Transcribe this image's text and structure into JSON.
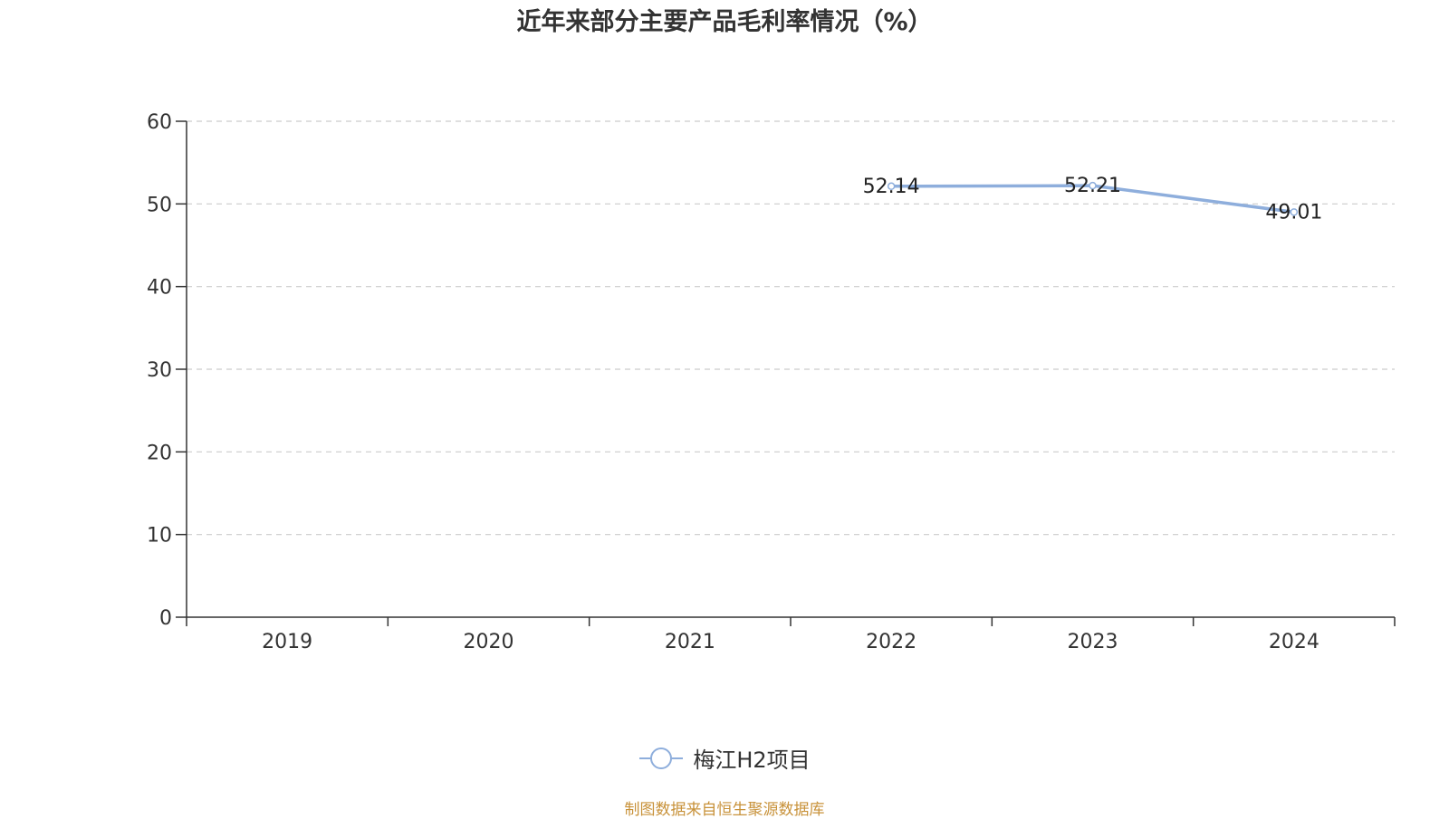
{
  "chart_data": {
    "type": "line",
    "title": "近年来部分主要产品毛利率情况（%）",
    "categories": [
      "2019",
      "2020",
      "2021",
      "2022",
      "2023",
      "2024"
    ],
    "series": [
      {
        "name": "梅江H2项目",
        "values": [
          null,
          null,
          null,
          52.14,
          52.21,
          49.01
        ],
        "labels": [
          "",
          "",
          "",
          "52.14",
          "52.21",
          "49.01"
        ],
        "color": "#8eaedc"
      }
    ],
    "ylim": [
      0,
      60
    ],
    "yticks": [
      "0",
      "10",
      "20",
      "30",
      "40",
      "50",
      "60"
    ],
    "grid": "dashed horizontal",
    "legend_position": "bottom-center"
  },
  "footer": {
    "source": "制图数据来自恒生聚源数据库"
  },
  "colors": {
    "series": "#8eaedc",
    "axis": "#333333",
    "grid": "#cccccc",
    "source_text": "#c8923a"
  }
}
